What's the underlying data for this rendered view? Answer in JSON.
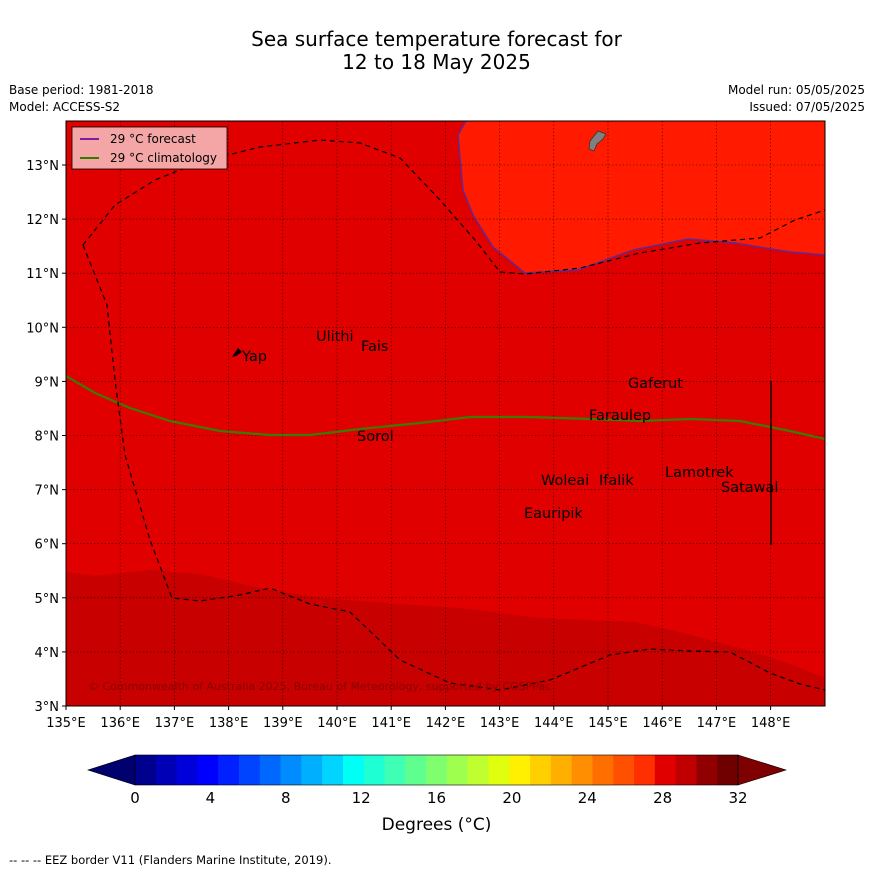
{
  "title_line1": "Sea surface temperature forecast for",
  "title_line2": "12 to 18 May 2025",
  "meta": {
    "base_period": "Base period: 1981-2018",
    "model": "Model: ACCESS-S2",
    "model_run": "Model run: 05/05/2025",
    "issued": "Issued: 07/05/2025"
  },
  "legend": {
    "forecast_label": "29 °C  forecast",
    "climatology_label": "29 °C  climatology",
    "forecast_color": "#7b1fa2",
    "climatology_color": "#2e7d00"
  },
  "lon_ticks": [
    "135°E",
    "136°E",
    "137°E",
    "138°E",
    "139°E",
    "140°E",
    "141°E",
    "142°E",
    "143°E",
    "144°E",
    "145°E",
    "146°E",
    "147°E",
    "148°E"
  ],
  "lat_ticks": [
    "13°N",
    "12°N",
    "11°N",
    "10°N",
    "9°N",
    "8°N",
    "7°N",
    "6°N",
    "5°N",
    "4°N",
    "3°N"
  ],
  "islands": [
    {
      "name": "Yap"
    },
    {
      "name": "Ulithi"
    },
    {
      "name": "Fais"
    },
    {
      "name": "Gaferut"
    },
    {
      "name": "Sorol"
    },
    {
      "name": "Faraulep"
    },
    {
      "name": "Lamotrek"
    },
    {
      "name": "Woleai"
    },
    {
      "name": "Ifalik"
    },
    {
      "name": "Satawal"
    },
    {
      "name": "Eauripik"
    }
  ],
  "copyright": "© Commonwealth of Australia 2025, Bureau of Meteorology, supported by COSPPac",
  "colorbar": {
    "tick_labels": [
      "0",
      "4",
      "8",
      "12",
      "16",
      "20",
      "24",
      "28",
      "32"
    ],
    "units_label": "Degrees (°C)",
    "colors": [
      "#00008f",
      "#0000b7",
      "#0000db",
      "#0000ff",
      "#0020ff",
      "#0044ff",
      "#0068ff",
      "#008cff",
      "#00b0ff",
      "#00d4ff",
      "#00fff4",
      "#1fffd4",
      "#3fffb4",
      "#5fff8f",
      "#7fff6f",
      "#9fff4f",
      "#bfff2f",
      "#dfff0f",
      "#ffef00",
      "#ffcf00",
      "#ffaf00",
      "#ff8f00",
      "#ff6f00",
      "#ff4f00",
      "#ff2f00",
      "#e00000",
      "#c00000",
      "#900000",
      "#700000"
    ],
    "under_color": "#00006f",
    "over_color": "#7f0000"
  },
  "fields": {
    "main_color": "#e00000",
    "north_color": "#ff1a00",
    "south_color": "#c80000"
  },
  "footer": "--  --  -- EEZ border V11 (Flanders Marine Institute, 2019)."
}
